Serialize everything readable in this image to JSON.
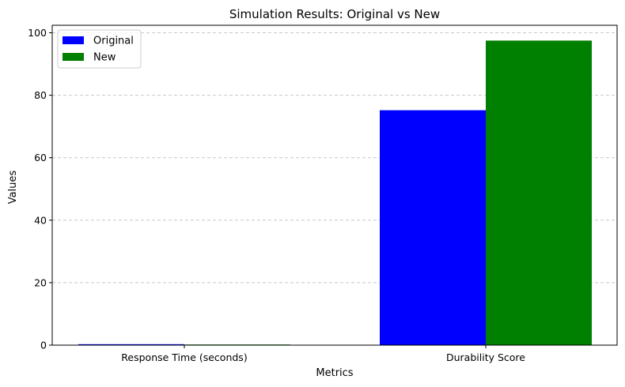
{
  "chart_data": {
    "type": "bar",
    "title": "Simulation Results: Original vs New",
    "xlabel": "Metrics",
    "ylabel": "Values",
    "categories": [
      "Response Time (seconds)",
      "Durability Score"
    ],
    "series": [
      {
        "name": "Original",
        "values": [
          0.3,
          75.2
        ],
        "color": "#0000ff"
      },
      {
        "name": "New",
        "values": [
          0.2,
          97.5
        ],
        "color": "#008000"
      }
    ],
    "ylim": [
      0,
      102.4
    ],
    "yticks": [
      0,
      20,
      40,
      60,
      80,
      100
    ],
    "grid": {
      "y": true,
      "x": false,
      "style": "dashed",
      "color": "#c8c8c8"
    },
    "legend_position": "top-left"
  }
}
